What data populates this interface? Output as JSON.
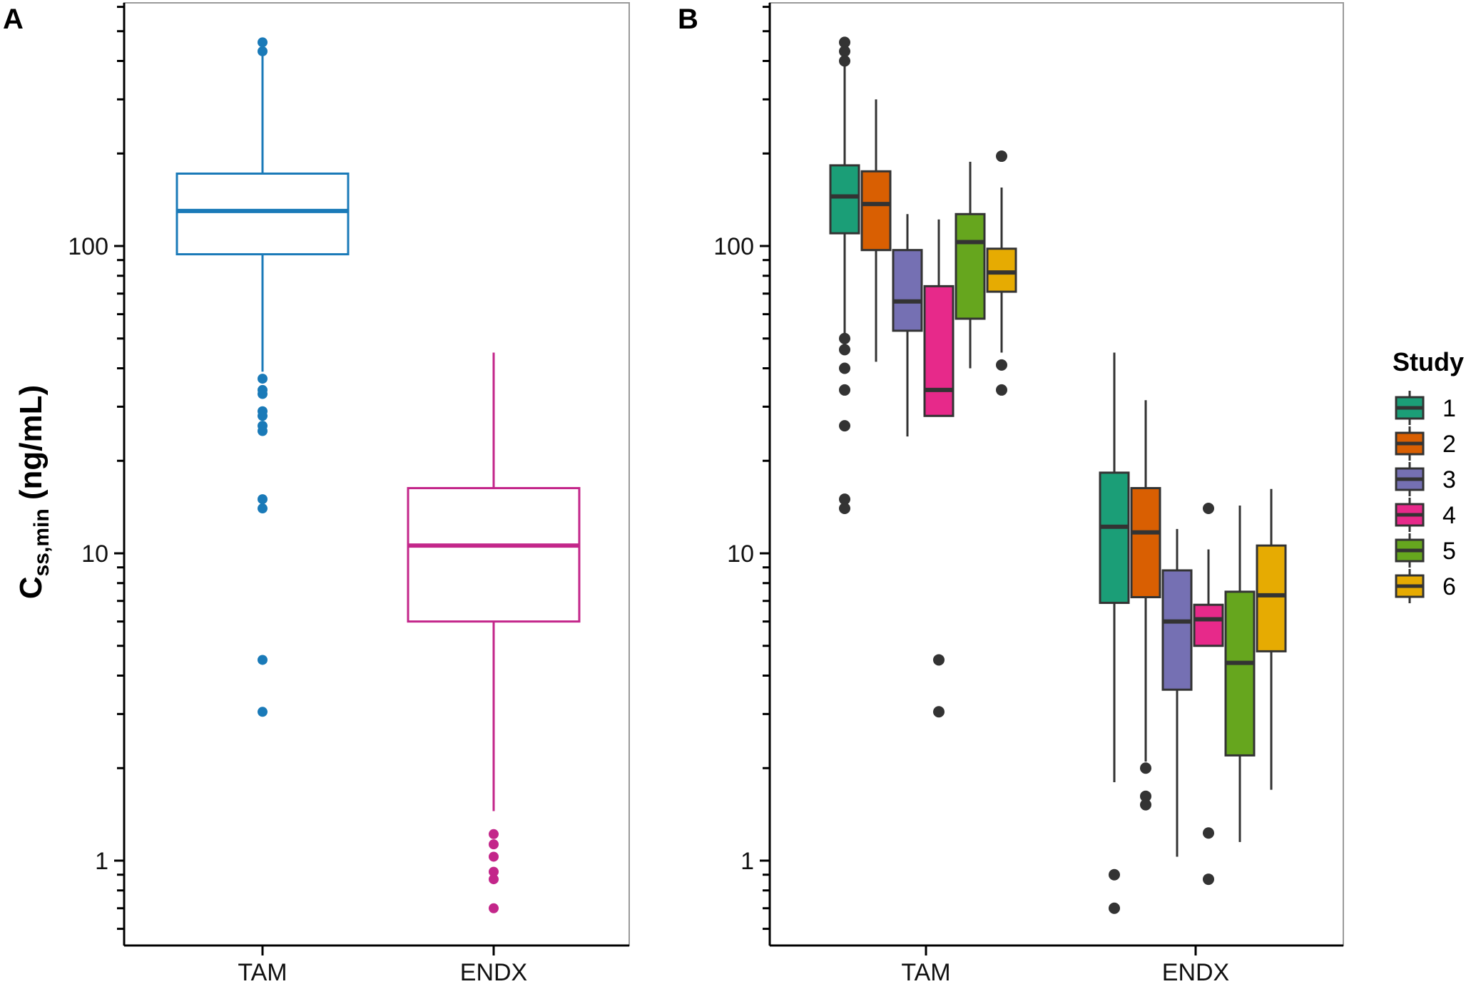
{
  "chart_data": [
    {
      "panel": "A",
      "type": "boxplot",
      "ylabel_main": "C",
      "ylabel_sub": "ss,min",
      "ylabel_unit": " (ng/mL)",
      "yscale": "log10",
      "ylim": [
        0.5,
        630
      ],
      "yticks": [
        1,
        10,
        100
      ],
      "ytick_labels": [
        "1",
        "10",
        "100"
      ],
      "categories": [
        "TAM",
        "ENDX"
      ],
      "boxes": [
        {
          "category": "TAM",
          "color": "#1a7ab8",
          "q1": 94,
          "median": 130,
          "q3": 172,
          "whisker_low": 39,
          "whisker_high": 460,
          "outliers": [
            460,
            430,
            37,
            34,
            33,
            29,
            28,
            26,
            25,
            15,
            14,
            4.5,
            3.05
          ]
        },
        {
          "category": "ENDX",
          "color": "#c3268a",
          "q1": 6.0,
          "median": 10.6,
          "q3": 16.3,
          "whisker_low": 1.45,
          "whisker_high": 45,
          "outliers": [
            1.22,
            1.13,
            1.03,
            0.92,
            0.87,
            0.7
          ]
        }
      ]
    },
    {
      "panel": "B",
      "type": "boxplot",
      "yscale": "log10",
      "ylim": [
        0.5,
        630
      ],
      "yticks": [
        1,
        10,
        100
      ],
      "ytick_labels": [
        "1",
        "10",
        "100"
      ],
      "categories": [
        "TAM",
        "ENDX"
      ],
      "legend_title": "Study",
      "series": [
        {
          "name": "1",
          "color": "#1b9e77"
        },
        {
          "name": "2",
          "color": "#d95f02"
        },
        {
          "name": "3",
          "color": "#7570b3"
        },
        {
          "name": "4",
          "color": "#e7298a"
        },
        {
          "name": "5",
          "color": "#66a61e"
        },
        {
          "name": "6",
          "color": "#e6ab02"
        }
      ],
      "boxes": [
        {
          "category": "TAM",
          "study": "1",
          "q1": 110,
          "median": 145,
          "q3": 183,
          "whisker_low": 50,
          "whisker_high": 420,
          "outliers": [
            460,
            430,
            400,
            50,
            46,
            40,
            34,
            26,
            15,
            14
          ]
        },
        {
          "category": "TAM",
          "study": "2",
          "q1": 97,
          "median": 137,
          "q3": 175,
          "whisker_low": 42,
          "whisker_high": 300,
          "outliers": []
        },
        {
          "category": "TAM",
          "study": "3",
          "q1": 53,
          "median": 66,
          "q3": 97,
          "whisker_low": 24,
          "whisker_high": 127,
          "outliers": []
        },
        {
          "category": "TAM",
          "study": "4",
          "q1": 28,
          "median": 34,
          "q3": 74,
          "whisker_low": 28,
          "whisker_high": 122,
          "outliers": [
            4.5,
            3.05
          ]
        },
        {
          "category": "TAM",
          "study": "5",
          "q1": 58,
          "median": 103,
          "q3": 127,
          "whisker_low": 40,
          "whisker_high": 188,
          "outliers": []
        },
        {
          "category": "TAM",
          "study": "6",
          "q1": 71,
          "median": 82,
          "q3": 98,
          "whisker_low": 45,
          "whisker_high": 155,
          "outliers": [
            196,
            41,
            34
          ]
        },
        {
          "category": "ENDX",
          "study": "1",
          "q1": 6.9,
          "median": 12.2,
          "q3": 18.3,
          "whisker_low": 1.8,
          "whisker_high": 45,
          "outliers": [
            0.9,
            0.7
          ]
        },
        {
          "category": "ENDX",
          "study": "2",
          "q1": 7.2,
          "median": 11.7,
          "q3": 16.3,
          "whisker_low": 2.1,
          "whisker_high": 31.5,
          "outliers": [
            2.0,
            1.62,
            1.52
          ]
        },
        {
          "category": "ENDX",
          "study": "3",
          "q1": 3.6,
          "median": 6.0,
          "q3": 8.8,
          "whisker_low": 1.03,
          "whisker_high": 12,
          "outliers": []
        },
        {
          "category": "ENDX",
          "study": "4",
          "q1": 5.0,
          "median": 6.1,
          "q3": 6.8,
          "whisker_low": 5.0,
          "whisker_high": 10.3,
          "outliers": [
            14,
            1.23,
            0.87
          ]
        },
        {
          "category": "ENDX",
          "study": "5",
          "q1": 2.2,
          "median": 4.4,
          "q3": 7.5,
          "whisker_low": 1.15,
          "whisker_high": 14.3,
          "outliers": []
        },
        {
          "category": "ENDX",
          "study": "6",
          "q1": 4.8,
          "median": 7.3,
          "q3": 10.6,
          "whisker_low": 1.7,
          "whisker_high": 16.2,
          "outliers": []
        }
      ]
    }
  ]
}
